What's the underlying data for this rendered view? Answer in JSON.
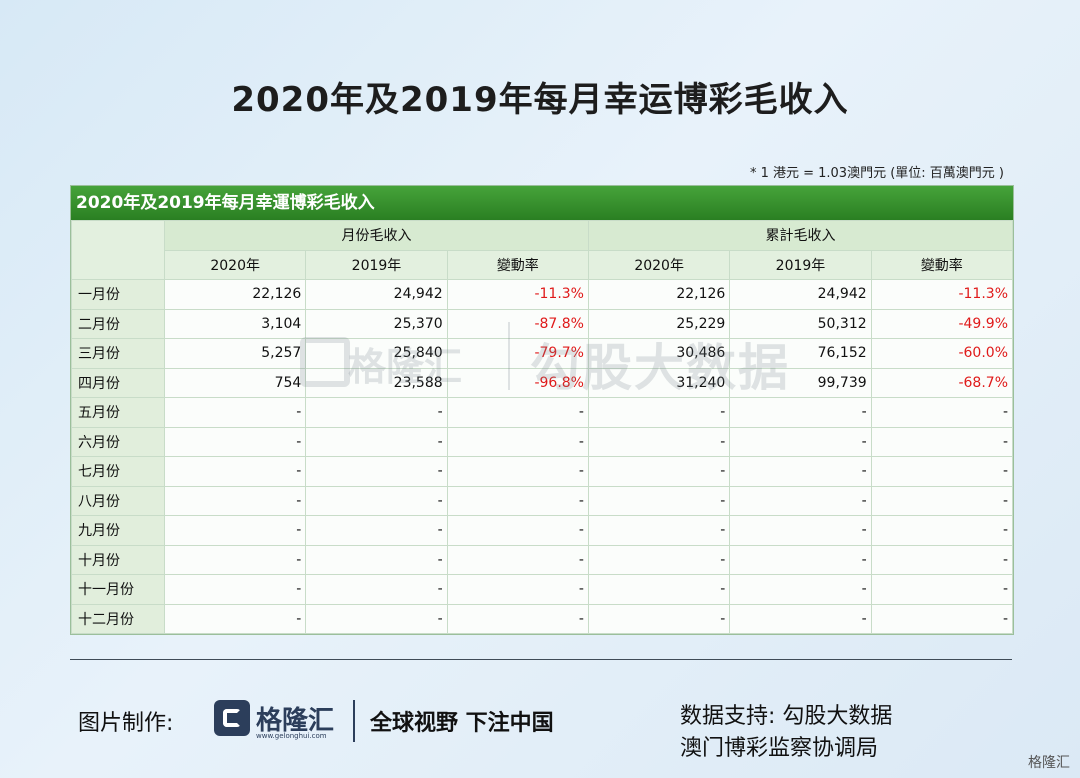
{
  "title": "2020年及2019年每月幸运博彩毛收入",
  "note": "* 1 港元 = 1.03澳門元 (單位: 百萬澳門元 )",
  "chart_data": {
    "type": "table",
    "title": "2020年及2019年每月幸運博彩毛收入",
    "group_headers": [
      "月份毛收入",
      "累計毛收入"
    ],
    "columns": [
      "2020年",
      "2019年",
      "變動率",
      "2020年",
      "2019年",
      "變動率"
    ],
    "rows": [
      {
        "label": "一月份",
        "values": [
          "22,126",
          "24,942",
          "-11.3%",
          "22,126",
          "24,942",
          "-11.3%"
        ]
      },
      {
        "label": "二月份",
        "values": [
          "3,104",
          "25,370",
          "-87.8%",
          "25,229",
          "50,312",
          "-49.9%"
        ]
      },
      {
        "label": "三月份",
        "values": [
          "5,257",
          "25,840",
          "-79.7%",
          "30,486",
          "76,152",
          "-60.0%"
        ]
      },
      {
        "label": "四月份",
        "values": [
          "754",
          "23,588",
          "-96.8%",
          "31,240",
          "99,739",
          "-68.7%"
        ]
      },
      {
        "label": "五月份",
        "values": [
          "-",
          "-",
          "-",
          "-",
          "-",
          "-"
        ]
      },
      {
        "label": "六月份",
        "values": [
          "-",
          "-",
          "-",
          "-",
          "-",
          "-"
        ]
      },
      {
        "label": "七月份",
        "values": [
          "-",
          "-",
          "-",
          "-",
          "-",
          "-"
        ]
      },
      {
        "label": "八月份",
        "values": [
          "-",
          "-",
          "-",
          "-",
          "-",
          "-"
        ]
      },
      {
        "label": "九月份",
        "values": [
          "-",
          "-",
          "-",
          "-",
          "-",
          "-"
        ]
      },
      {
        "label": "十月份",
        "values": [
          "-",
          "-",
          "-",
          "-",
          "-",
          "-"
        ]
      },
      {
        "label": "十一月份",
        "values": [
          "-",
          "-",
          "-",
          "-",
          "-",
          "-"
        ]
      },
      {
        "label": "十二月份",
        "values": [
          "-",
          "-",
          "-",
          "-",
          "-",
          "-"
        ]
      }
    ],
    "colors": {
      "header": "#2a7f22",
      "negative": "#e01a1a"
    }
  },
  "watermark": {
    "brand": "格隆汇",
    "source": "勾股大数据"
  },
  "footer": {
    "made_by_label": "图片制作:",
    "logo_text": "格隆汇",
    "logo_url": "www.gelonghui.com",
    "slogan": "全球视野 下注中国",
    "source_label": "数据支持: 勾股大数据",
    "source_org": "澳门博彩监察协调局",
    "corner_brand": "格隆汇"
  }
}
